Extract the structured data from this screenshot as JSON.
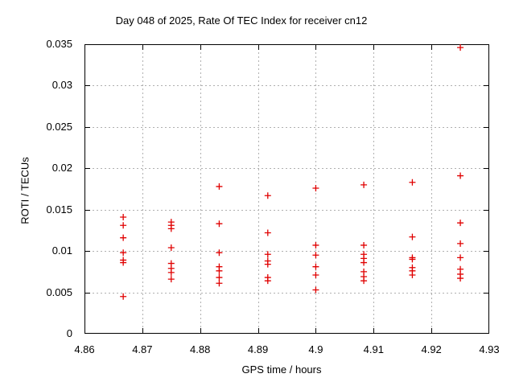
{
  "chart_data": {
    "type": "scatter",
    "title": "Day 048 of 2025, Rate Of TEC Index for receiver cn12",
    "xlabel": "GPS time / hours",
    "ylabel": "ROTI / TECUs",
    "xlim": [
      4.86,
      4.93
    ],
    "ylim": [
      0,
      0.035
    ],
    "xticks": [
      4.86,
      4.87,
      4.88,
      4.89,
      4.9,
      4.91,
      4.92,
      4.93
    ],
    "xtick_labels": [
      "4.86",
      "4.87",
      "4.88",
      "4.89",
      "4.9",
      "4.91",
      "4.92",
      "4.93"
    ],
    "yticks": [
      0,
      0.005,
      0.01,
      0.015,
      0.02,
      0.025,
      0.03,
      0.035
    ],
    "ytick_labels": [
      "0",
      "0.005",
      "0.01",
      "0.015",
      "0.02",
      "0.025",
      "0.03",
      "0.035"
    ],
    "grid": true,
    "legend": "none",
    "marker": "plus",
    "marker_color": "#e00000",
    "grid_color": "#b0b0b0",
    "frame_color": "#000000",
    "background_color": "#ffffff",
    "series": [
      {
        "points": [
          [
            4.8667,
            0.0141
          ],
          [
            4.8667,
            0.0131
          ],
          [
            4.8667,
            0.0116
          ],
          [
            4.8667,
            0.0098
          ],
          [
            4.8667,
            0.0089
          ],
          [
            4.8667,
            0.0086
          ],
          [
            4.8667,
            0.0045
          ],
          [
            4.875,
            0.0135
          ],
          [
            4.875,
            0.0131
          ],
          [
            4.875,
            0.0127
          ],
          [
            4.875,
            0.0104
          ],
          [
            4.875,
            0.0085
          ],
          [
            4.875,
            0.0079
          ],
          [
            4.875,
            0.0074
          ],
          [
            4.875,
            0.0066
          ],
          [
            4.8833,
            0.0178
          ],
          [
            4.8833,
            0.0133
          ],
          [
            4.8833,
            0.0098
          ],
          [
            4.8833,
            0.0081
          ],
          [
            4.8833,
            0.0076
          ],
          [
            4.8833,
            0.0068
          ],
          [
            4.8833,
            0.0061
          ],
          [
            4.8917,
            0.0167
          ],
          [
            4.8917,
            0.0122
          ],
          [
            4.8917,
            0.0096
          ],
          [
            4.8917,
            0.0088
          ],
          [
            4.8917,
            0.0084
          ],
          [
            4.8917,
            0.0068
          ],
          [
            4.8917,
            0.0064
          ],
          [
            4.9,
            0.0176
          ],
          [
            4.9,
            0.0107
          ],
          [
            4.9,
            0.0095
          ],
          [
            4.9,
            0.0081
          ],
          [
            4.9,
            0.0071
          ],
          [
            4.9,
            0.0053
          ],
          [
            4.9083,
            0.018
          ],
          [
            4.9083,
            0.0107
          ],
          [
            4.9083,
            0.0096
          ],
          [
            4.9083,
            0.0091
          ],
          [
            4.9083,
            0.0086
          ],
          [
            4.9083,
            0.0075
          ],
          [
            4.9083,
            0.0069
          ],
          [
            4.9083,
            0.0064
          ],
          [
            4.9167,
            0.0183
          ],
          [
            4.9167,
            0.0117
          ],
          [
            4.9167,
            0.0092
          ],
          [
            4.9167,
            0.009
          ],
          [
            4.9167,
            0.008
          ],
          [
            4.9167,
            0.0076
          ],
          [
            4.9167,
            0.0071
          ],
          [
            4.925,
            0.0346
          ],
          [
            4.925,
            0.0191
          ],
          [
            4.925,
            0.0134
          ],
          [
            4.925,
            0.0109
          ],
          [
            4.925,
            0.0092
          ],
          [
            4.925,
            0.0078
          ],
          [
            4.925,
            0.0072
          ],
          [
            4.925,
            0.0067
          ]
        ]
      }
    ]
  }
}
